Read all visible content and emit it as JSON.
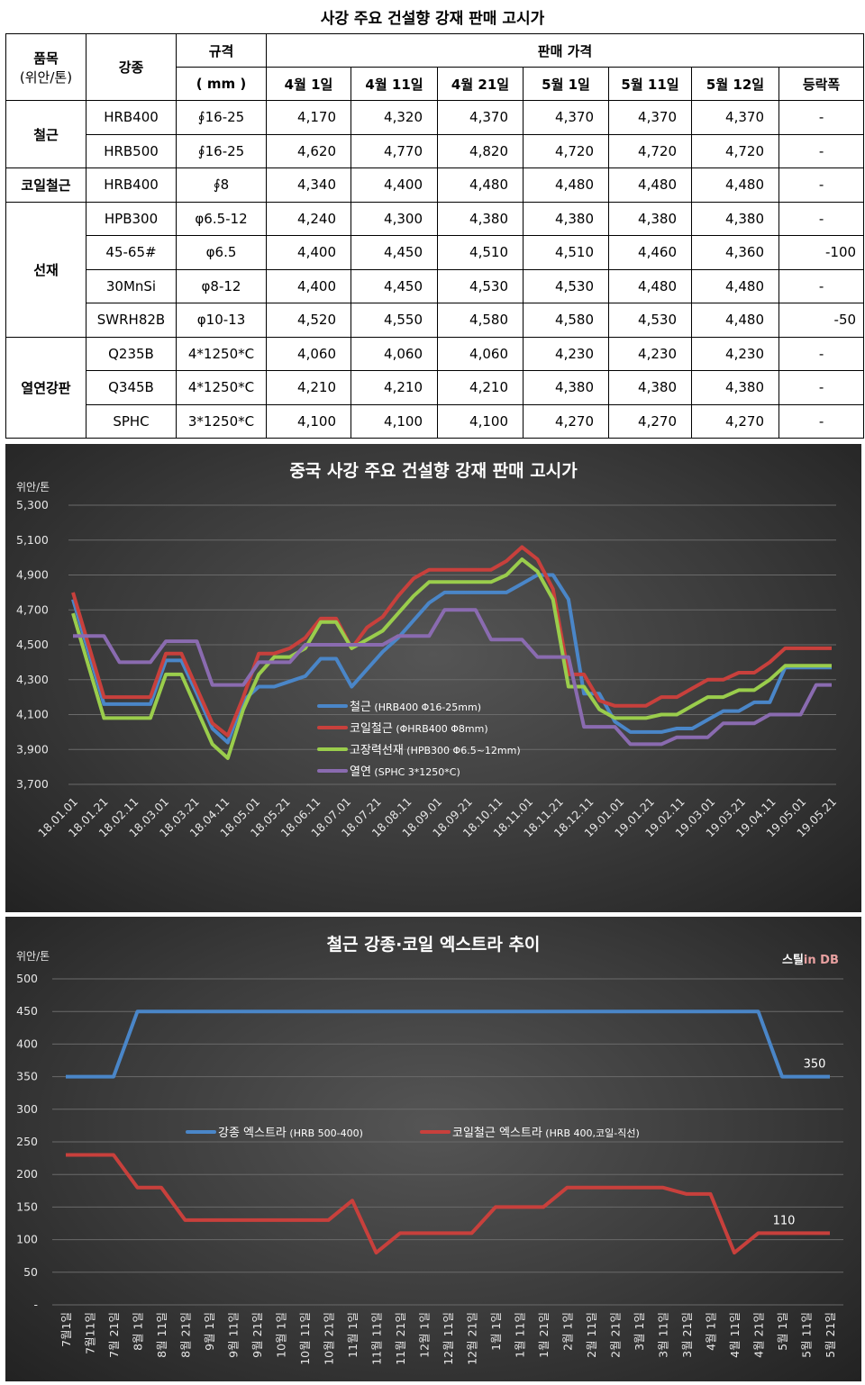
{
  "page_title": "사강 주요 건설향 강재 판매 고시가",
  "table": {
    "h_item": "품목",
    "h_unit": "(위안/톤)",
    "h_grade": "강종",
    "h_spec": "규격",
    "h_spec_unit": "( mm )",
    "h_price": "판매 가격",
    "dates": [
      "4월 1일",
      "4월 11일",
      "4월 21일",
      "5월 1일",
      "5월 11일",
      "5월 12일",
      "등락폭"
    ],
    "groups": [
      {
        "category": "철근",
        "rows": [
          {
            "grade": "HRB400",
            "spec": "∮16-25",
            "prices": [
              "4,170",
              "4,320",
              "4,370",
              "4,370",
              "4,370",
              "4,370"
            ],
            "change": "-"
          },
          {
            "grade": "HRB500",
            "spec": "∮16-25",
            "prices": [
              "4,620",
              "4,770",
              "4,820",
              "4,720",
              "4,720",
              "4,720"
            ],
            "change": "-"
          }
        ]
      },
      {
        "category": "코일철근",
        "rows": [
          {
            "grade": "HRB400",
            "spec": "∮8",
            "prices": [
              "4,340",
              "4,400",
              "4,480",
              "4,480",
              "4,480",
              "4,480"
            ],
            "change": "-"
          }
        ]
      },
      {
        "category": "선재",
        "rows": [
          {
            "grade": "HPB300",
            "spec": "φ6.5-12",
            "prices": [
              "4,240",
              "4,300",
              "4,380",
              "4,380",
              "4,380",
              "4,380"
            ],
            "change": "-"
          },
          {
            "grade": "45-65#",
            "spec": "φ6.5",
            "prices": [
              "4,400",
              "4,450",
              "4,510",
              "4,510",
              "4,460",
              "4,360"
            ],
            "change": "-100"
          },
          {
            "grade": "30MnSi",
            "spec": "φ8-12",
            "prices": [
              "4,400",
              "4,450",
              "4,530",
              "4,530",
              "4,480",
              "4,480"
            ],
            "change": "-"
          },
          {
            "grade": "SWRH82B",
            "spec": "φ10-13",
            "prices": [
              "4,520",
              "4,550",
              "4,580",
              "4,580",
              "4,530",
              "4,480"
            ],
            "change": "-50"
          }
        ]
      },
      {
        "category": "열연강판",
        "rows": [
          {
            "grade": "Q235B",
            "spec": "4*1250*C",
            "prices": [
              "4,060",
              "4,060",
              "4,060",
              "4,230",
              "4,230",
              "4,230"
            ],
            "change": "-"
          },
          {
            "grade": "Q345B",
            "spec": "4*1250*C",
            "prices": [
              "4,210",
              "4,210",
              "4,210",
              "4,380",
              "4,380",
              "4,380"
            ],
            "change": "-"
          },
          {
            "grade": "SPHC",
            "spec": "3*1250*C",
            "prices": [
              "4,100",
              "4,100",
              "4,100",
              "4,270",
              "4,270",
              "4,270"
            ],
            "change": "-"
          }
        ]
      }
    ]
  },
  "chart_data": [
    {
      "type": "line",
      "title": "중국 사강 주요 건설향 강재 판매 고시가",
      "ylabel": "위안/톤",
      "ylim": [
        3700,
        5300
      ],
      "yticks": [
        "5,300",
        "5,100",
        "4,900",
        "4,700",
        "4,500",
        "4,300",
        "4,100",
        "3,900",
        "3,700"
      ],
      "x_tick_labels": [
        "18.01.01",
        "18.01.21",
        "18.02.11",
        "18.03.01",
        "18.03.21",
        "18.04.11",
        "18.05.01",
        "18.05.21",
        "18.06.11",
        "18.07.01",
        "18.07.21",
        "18.08.11",
        "18.09.01",
        "18.09.21",
        "18.10.11",
        "18.11.01",
        "18.11.21",
        "18.12.11",
        "19.01.01",
        "19.01.21",
        "19.02.11",
        "19.03.01",
        "19.03.21",
        "19.04.11",
        "19.05.01",
        "19.05.21"
      ],
      "legend_position": "center",
      "series": [
        {
          "name": "철근",
          "note": "(HRB400 Φ16-25mm)",
          "color": "#4a86c8",
          "values": [
            4760,
            4460,
            4160,
            4160,
            4160,
            4160,
            4410,
            4410,
            4220,
            4020,
            3940,
            4180,
            4260,
            4260,
            4290,
            4320,
            4420,
            4420,
            4260,
            4360,
            4460,
            4540,
            4640,
            4740,
            4800,
            4800,
            4800,
            4800,
            4800,
            4850,
            4900,
            4900,
            4760,
            4220,
            4220,
            4060,
            4000,
            4000,
            4000,
            4020,
            4020,
            4070,
            4120,
            4120,
            4170,
            4170,
            4370,
            4370,
            4370,
            4370
          ]
        },
        {
          "name": "코일철근",
          "note": "(ΦHRB400 Φ8mm)",
          "color": "#c8403c",
          "values": [
            4800,
            4500,
            4200,
            4200,
            4200,
            4200,
            4450,
            4450,
            4250,
            4050,
            3980,
            4200,
            4450,
            4450,
            4480,
            4540,
            4650,
            4650,
            4480,
            4600,
            4660,
            4780,
            4880,
            4930,
            4930,
            4930,
            4930,
            4930,
            4980,
            5060,
            4990,
            4820,
            4330,
            4330,
            4180,
            4150,
            4150,
            4150,
            4200,
            4200,
            4250,
            4300,
            4300,
            4340,
            4340,
            4400,
            4480,
            4480,
            4480,
            4480
          ]
        },
        {
          "name": "고장력선재",
          "note": "(HPB300 Φ6.5~12mm)",
          "color": "#9acd4c",
          "values": [
            4680,
            4380,
            4080,
            4080,
            4080,
            4080,
            4330,
            4330,
            4130,
            3930,
            3850,
            4130,
            4330,
            4430,
            4430,
            4480,
            4630,
            4630,
            4480,
            4530,
            4580,
            4680,
            4780,
            4860,
            4860,
            4860,
            4860,
            4860,
            4900,
            4990,
            4920,
            4760,
            4260,
            4260,
            4130,
            4080,
            4080,
            4080,
            4100,
            4100,
            4150,
            4200,
            4200,
            4240,
            4240,
            4300,
            4380,
            4380,
            4380,
            4380
          ]
        },
        {
          "name": "열연",
          "note": "(SPHC 3*1250*C)",
          "color": "#8a6bb0",
          "values": [
            4550,
            4550,
            4550,
            4400,
            4400,
            4400,
            4520,
            4520,
            4520,
            4270,
            4270,
            4270,
            4400,
            4400,
            4400,
            4500,
            4500,
            4500,
            4500,
            4500,
            4500,
            4550,
            4550,
            4550,
            4700,
            4700,
            4700,
            4530,
            4530,
            4530,
            4430,
            4430,
            4430,
            4030,
            4030,
            4030,
            3930,
            3930,
            3930,
            3970,
            3970,
            3970,
            4050,
            4050,
            4050,
            4100,
            4100,
            4100,
            4270,
            4270
          ]
        }
      ]
    },
    {
      "type": "line",
      "title": "철근 강종·코일 엑스트라 추이",
      "ylabel": "위안/톤",
      "ylim": [
        0,
        500
      ],
      "yticks": [
        "500",
        "450",
        "400",
        "350",
        "300",
        "250",
        "200",
        "150",
        "100",
        "50",
        "-"
      ],
      "brand_label": "스틸in DB",
      "legend_position": "center",
      "categories": [
        "7월1일",
        "7월11일",
        "7월 21일",
        "8월 1일",
        "8월 11일",
        "8월 21일",
        "9월 1일",
        "9월 11일",
        "9월 21일",
        "10월 1일",
        "10월 11일",
        "10월 21일",
        "11월 1일",
        "11월 11일",
        "11월 21일",
        "12월 1일",
        "12월 11일",
        "12월 21일",
        "1월 1일",
        "1월 11일",
        "1월 21일",
        "2월 1일",
        "2월 11일",
        "2월 21일",
        "3월 1일",
        "3월 11일",
        "3월 21일",
        "4월 1일",
        "4월 11일",
        "4월 21일",
        "5월 1일",
        "5월 11일",
        "5월 21일"
      ],
      "series": [
        {
          "name": "강종 엑스트라",
          "note": "(HRB 500-400)",
          "color": "#4a86c8",
          "values": [
            350,
            350,
            350,
            450,
            450,
            450,
            450,
            450,
            450,
            450,
            450,
            450,
            450,
            450,
            450,
            450,
            450,
            450,
            450,
            450,
            450,
            450,
            450,
            450,
            450,
            450,
            450,
            450,
            450,
            450,
            350,
            350,
            350
          ]
        },
        {
          "name": "코일철근 엑스트라",
          "note": "(HRB 400,코일-직선)",
          "color": "#c8403c",
          "values": [
            230,
            230,
            230,
            180,
            180,
            130,
            130,
            130,
            130,
            130,
            130,
            130,
            160,
            80,
            110,
            110,
            110,
            110,
            150,
            150,
            150,
            180,
            180,
            180,
            180,
            180,
            170,
            170,
            80,
            110,
            110,
            110,
            110
          ]
        }
      ],
      "data_labels": [
        "350",
        "110"
      ]
    }
  ]
}
